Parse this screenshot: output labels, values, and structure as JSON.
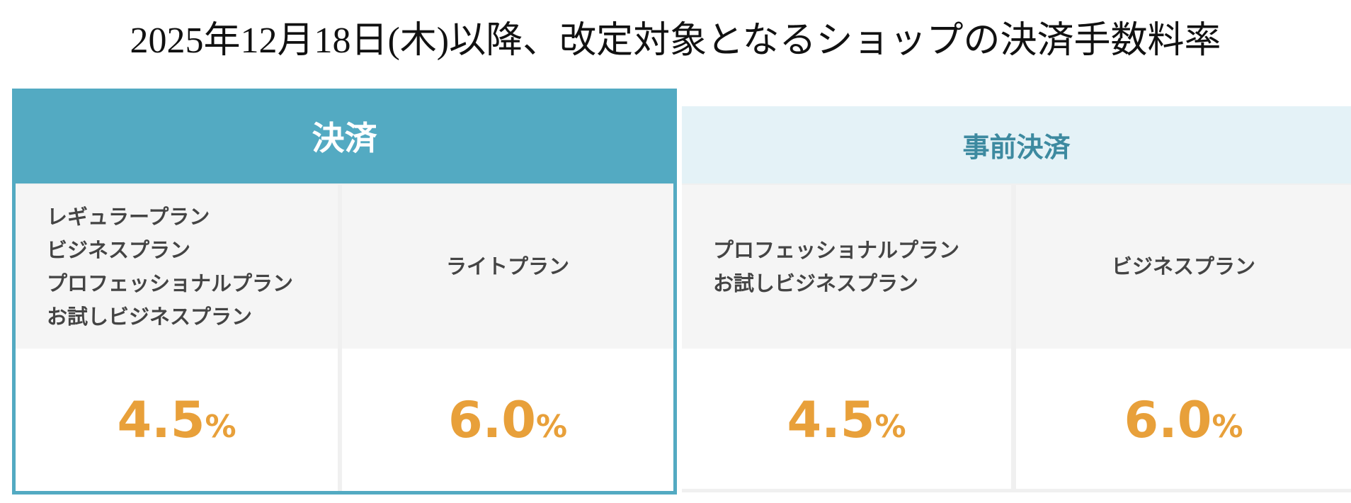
{
  "title": "2025年12月18日(木)以降、改定対象となるショップの決済手数料率",
  "groups": [
    {
      "header": "決済",
      "plans": [
        {
          "names": [
            "レギュラープラン",
            "ビジネスプラン",
            "プロフェッショナルプラン",
            "お試しビジネスプラン"
          ],
          "rate": "4.5",
          "unit": "%"
        },
        {
          "names": [
            "ライトプラン"
          ],
          "rate": "6.0",
          "unit": "%"
        }
      ]
    },
    {
      "header": "事前決済",
      "plans": [
        {
          "names": [
            "プロフェッショナルプラン",
            "お試しビジネスプラン"
          ],
          "rate": "4.5",
          "unit": "%"
        },
        {
          "names": [
            "ビジネスプラン"
          ],
          "rate": "6.0",
          "unit": "%"
        }
      ]
    }
  ]
}
